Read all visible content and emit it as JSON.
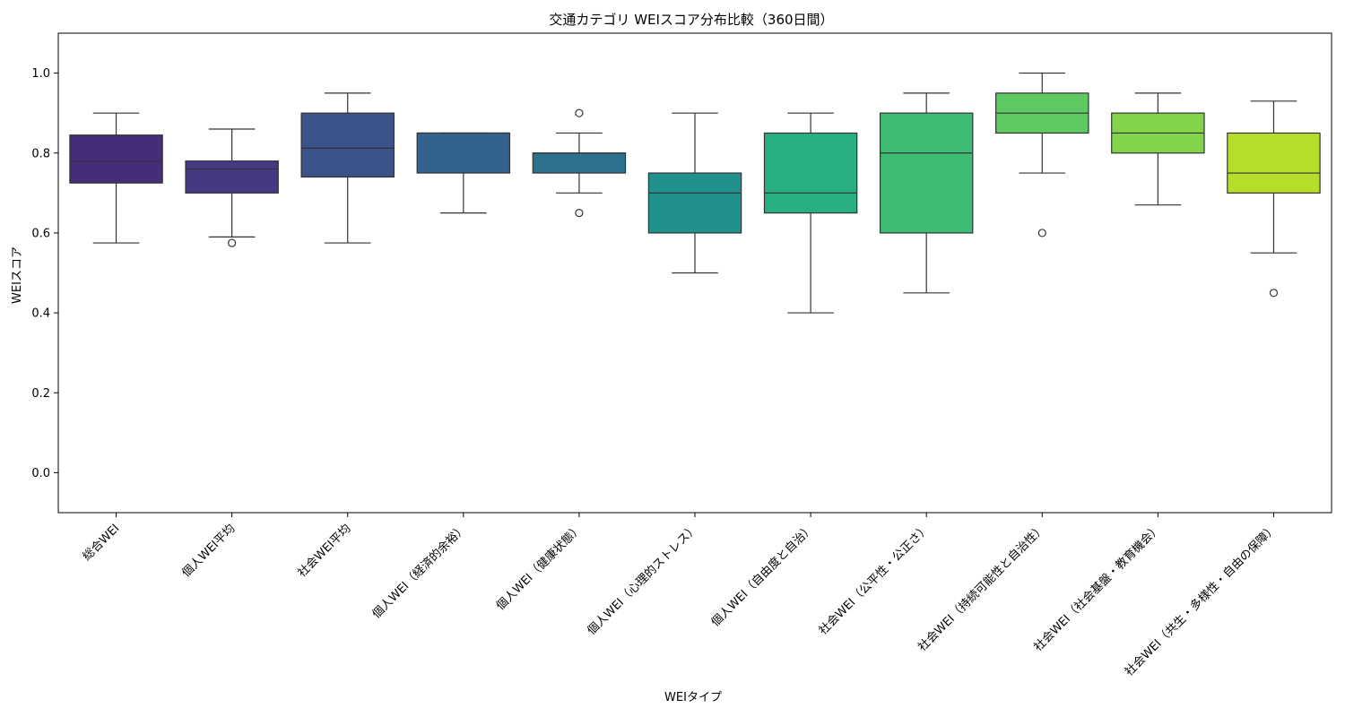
{
  "chart_data": {
    "type": "box",
    "title": "交通カテゴリ WEIスコア分布比較（360日間）",
    "xlabel": "WEIタイプ",
    "ylabel": "WEIスコア",
    "ylim": [
      -0.1,
      1.1
    ],
    "yticks": [
      0.0,
      0.2,
      0.4,
      0.6,
      0.8,
      1.0
    ],
    "ytick_labels": [
      "0.0",
      "0.2",
      "0.4",
      "0.6",
      "0.8",
      "1.0"
    ],
    "grid": false,
    "boxes": [
      {
        "label": "総合WEI",
        "whislo": 0.575,
        "q1": 0.725,
        "med": 0.78,
        "q3": 0.845,
        "whishi": 0.9,
        "fliers": [],
        "color": "#472c7a"
      },
      {
        "label": "個人WEI平均",
        "whislo": 0.59,
        "q1": 0.7,
        "med": 0.76,
        "q3": 0.78,
        "whishi": 0.86,
        "fliers": [
          0.575
        ],
        "color": "#443983"
      },
      {
        "label": "社会WEI平均",
        "whislo": 0.575,
        "q1": 0.74,
        "med": 0.812,
        "q3": 0.9,
        "whishi": 0.95,
        "fliers": [],
        "color": "#3b528b"
      },
      {
        "label": "個人WEI（経済的余裕）",
        "whislo": 0.65,
        "q1": 0.75,
        "med": 0.85,
        "q3": 0.85,
        "whishi": 0.85,
        "fliers": [],
        "color": "#33638d"
      },
      {
        "label": "個人WEI（健康状態）",
        "whislo": 0.7,
        "q1": 0.75,
        "med": 0.8,
        "q3": 0.8,
        "whishi": 0.85,
        "fliers": [
          0.65,
          0.9
        ],
        "color": "#2c728e"
      },
      {
        "label": "個人WEI（心理的ストレス）",
        "whislo": 0.5,
        "q1": 0.6,
        "med": 0.7,
        "q3": 0.75,
        "whishi": 0.9,
        "fliers": [],
        "color": "#21918c"
      },
      {
        "label": "個人WEI（自由度と自治）",
        "whislo": 0.4,
        "q1": 0.65,
        "med": 0.7,
        "q3": 0.85,
        "whishi": 0.9,
        "fliers": [],
        "color": "#28ae80"
      },
      {
        "label": "社会WEI（公平性・公正さ）",
        "whislo": 0.45,
        "q1": 0.6,
        "med": 0.8,
        "q3": 0.9,
        "whishi": 0.95,
        "fliers": [],
        "color": "#3fbc73"
      },
      {
        "label": "社会WEI（持続可能性と自治性）",
        "whislo": 0.75,
        "q1": 0.85,
        "med": 0.9,
        "q3": 0.95,
        "whishi": 1.0,
        "fliers": [
          0.6
        ],
        "color": "#5ec962"
      },
      {
        "label": "社会WEI（社会基盤・教育機会）",
        "whislo": 0.67,
        "q1": 0.8,
        "med": 0.85,
        "q3": 0.9,
        "whishi": 0.95,
        "fliers": [],
        "color": "#84d44b"
      },
      {
        "label": "社会WEI（共生・多様性・自由の保障）",
        "whislo": 0.55,
        "q1": 0.7,
        "med": 0.75,
        "q3": 0.85,
        "whishi": 0.93,
        "fliers": [
          0.45
        ],
        "color": "#b5de2b"
      }
    ]
  }
}
